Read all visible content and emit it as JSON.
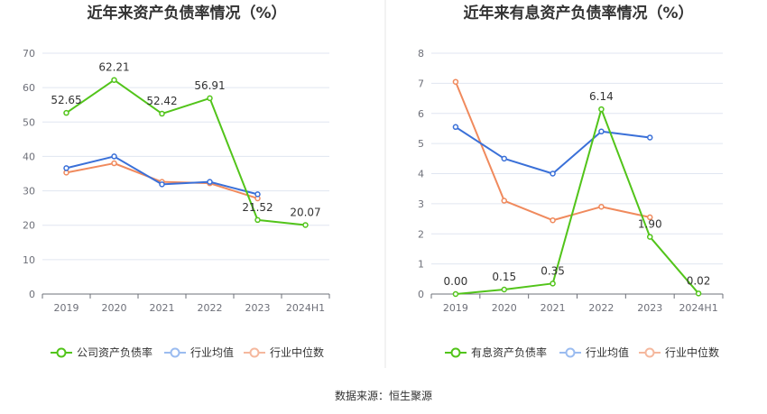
{
  "source_text": "数据来源：恒生聚源",
  "chart_data": [
    {
      "type": "line",
      "title": "近年来资产负债率情况（%）",
      "categories": [
        "2019",
        "2020",
        "2021",
        "2022",
        "2023",
        "2024H1"
      ],
      "ylim": [
        0,
        70
      ],
      "yticks": [
        0,
        10,
        20,
        30,
        40,
        50,
        60,
        70
      ],
      "grid": true,
      "legend_position": "bottom",
      "series": [
        {
          "name": "公司资产负债率",
          "color": "#52c41a",
          "values": [
            52.65,
            62.21,
            52.42,
            56.91,
            21.52,
            20.07
          ],
          "labels": [
            "52.65",
            "62.21",
            "52.42",
            "56.91",
            "21.52",
            "20.07"
          ]
        },
        {
          "name": "行业均值",
          "color": "#3a70d8",
          "values": [
            36.6,
            40.0,
            31.9,
            32.6,
            29.0,
            null
          ]
        },
        {
          "name": "行业中位数",
          "color": "#f08a5d",
          "values": [
            35.3,
            38.0,
            32.6,
            32.2,
            27.8,
            null
          ]
        }
      ]
    },
    {
      "type": "line",
      "title": "近年来有息资产负债率情况（%）",
      "categories": [
        "2019",
        "2020",
        "2021",
        "2022",
        "2023",
        "2024H1"
      ],
      "ylim": [
        0,
        8
      ],
      "yticks": [
        0,
        1,
        2,
        3,
        4,
        5,
        6,
        7,
        8
      ],
      "grid": true,
      "legend_position": "bottom",
      "series": [
        {
          "name": "有息资产负债率",
          "color": "#52c41a",
          "values": [
            0.0,
            0.15,
            0.35,
            6.14,
            1.9,
            0.02
          ],
          "labels": [
            "0.00",
            "0.15",
            "0.35",
            "6.14",
            "1.90",
            "0.02"
          ]
        },
        {
          "name": "行业均值",
          "color": "#3a70d8",
          "values": [
            5.55,
            4.5,
            4.0,
            5.4,
            5.2,
            null
          ]
        },
        {
          "name": "行业中位数",
          "color": "#f08a5d",
          "values": [
            7.05,
            3.1,
            2.45,
            2.9,
            2.55,
            null
          ]
        }
      ]
    }
  ]
}
